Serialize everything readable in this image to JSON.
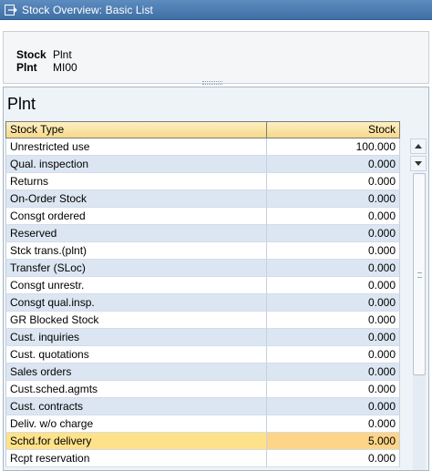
{
  "window": {
    "title": "Stock Overview: Basic List",
    "icon": "exit-window-icon"
  },
  "header": {
    "fields": [
      {
        "label": "Stock",
        "value": "Plnt"
      },
      {
        "label": "Plnt",
        "value": "MI00"
      }
    ]
  },
  "pane": {
    "title": "Plnt"
  },
  "grid": {
    "columns": [
      "Stock Type",
      "Stock"
    ],
    "rows": [
      {
        "type": "Unrestricted use",
        "stock": "100.000"
      },
      {
        "type": "Qual. inspection",
        "stock": "0.000"
      },
      {
        "type": "Returns",
        "stock": "0.000"
      },
      {
        "type": "On-Order Stock",
        "stock": "0.000"
      },
      {
        "type": "Consgt ordered",
        "stock": "0.000"
      },
      {
        "type": "Reserved",
        "stock": "0.000"
      },
      {
        "type": "Stck trans.(plnt)",
        "stock": "0.000"
      },
      {
        "type": "Transfer (SLoc)",
        "stock": "0.000"
      },
      {
        "type": "Consgt unrestr.",
        "stock": "0.000"
      },
      {
        "type": "Consgt qual.insp.",
        "stock": "0.000"
      },
      {
        "type": "GR Blocked Stock",
        "stock": "0.000"
      },
      {
        "type": "Cust. inquiries",
        "stock": "0.000"
      },
      {
        "type": "Cust. quotations",
        "stock": "0.000"
      },
      {
        "type": "Sales orders",
        "stock": "0.000"
      },
      {
        "type": "Cust.sched.agmts",
        "stock": "0.000"
      },
      {
        "type": "Cust. contracts",
        "stock": "0.000"
      },
      {
        "type": "Deliv. w/o charge",
        "stock": "0.000"
      },
      {
        "type": "Schd.for delivery",
        "stock": "5.000",
        "selected": true
      },
      {
        "type": "Rcpt reservation",
        "stock": "0.000"
      }
    ]
  },
  "scrollbar": {
    "up_icon": "scroll-up-icon",
    "down_icon": "scroll-down-icon"
  },
  "colors": {
    "titlebar": "#4a7bb3",
    "header_cell": "#f6d98a",
    "row_alt": "#dce6f2",
    "row_selected": "#fde28a"
  }
}
